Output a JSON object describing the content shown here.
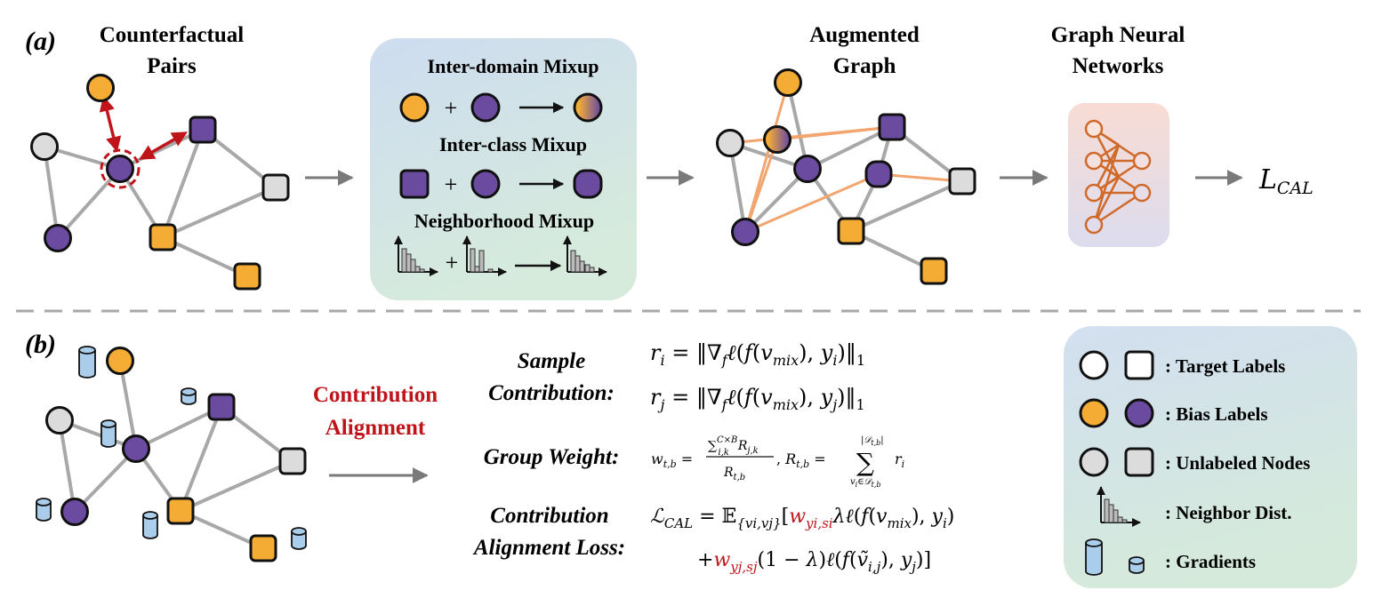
{
  "panel_a": {
    "tag": "(a)",
    "title_counterfactual": [
      "Counterfactual",
      "Pairs"
    ],
    "title_augmented": [
      "Augmented",
      "Graph"
    ],
    "title_gnn": [
      "Graph Neural",
      "Networks"
    ],
    "mixup_inter_domain": "Inter-domain Mixup",
    "mixup_inter_class": "Inter-class Mixup",
    "mixup_neighborhood": "Neighborhood Mixup",
    "plus": "+",
    "loss_symbol": "L",
    "loss_subscript": "CAL"
  },
  "panel_b": {
    "tag": "(b)",
    "contribution_alignment": [
      "Contribution",
      "Alignment"
    ],
    "sample_contribution_label": [
      "Sample",
      "Contribution:"
    ],
    "group_weight_label": "Group Weight:",
    "cal_loss_label": [
      "Contribution",
      "Alignment Loss:"
    ]
  },
  "legend": {
    "target_labels": ": Target Labels",
    "bias_labels": ": Bias Labels",
    "unlabeled_nodes": ": Unlabeled Nodes",
    "neighbor_dist": ": Neighbor Dist.",
    "gradients": ": Gradients"
  },
  "colors": {
    "orange": "#f4ac35",
    "purple": "#6a4ba0",
    "gray_node": "#dcdcdc",
    "edge": "#a8a8a8",
    "red": "#c0141b",
    "orange_edge": "#f2a56e",
    "gradient_blue": "#a9cdea"
  }
}
